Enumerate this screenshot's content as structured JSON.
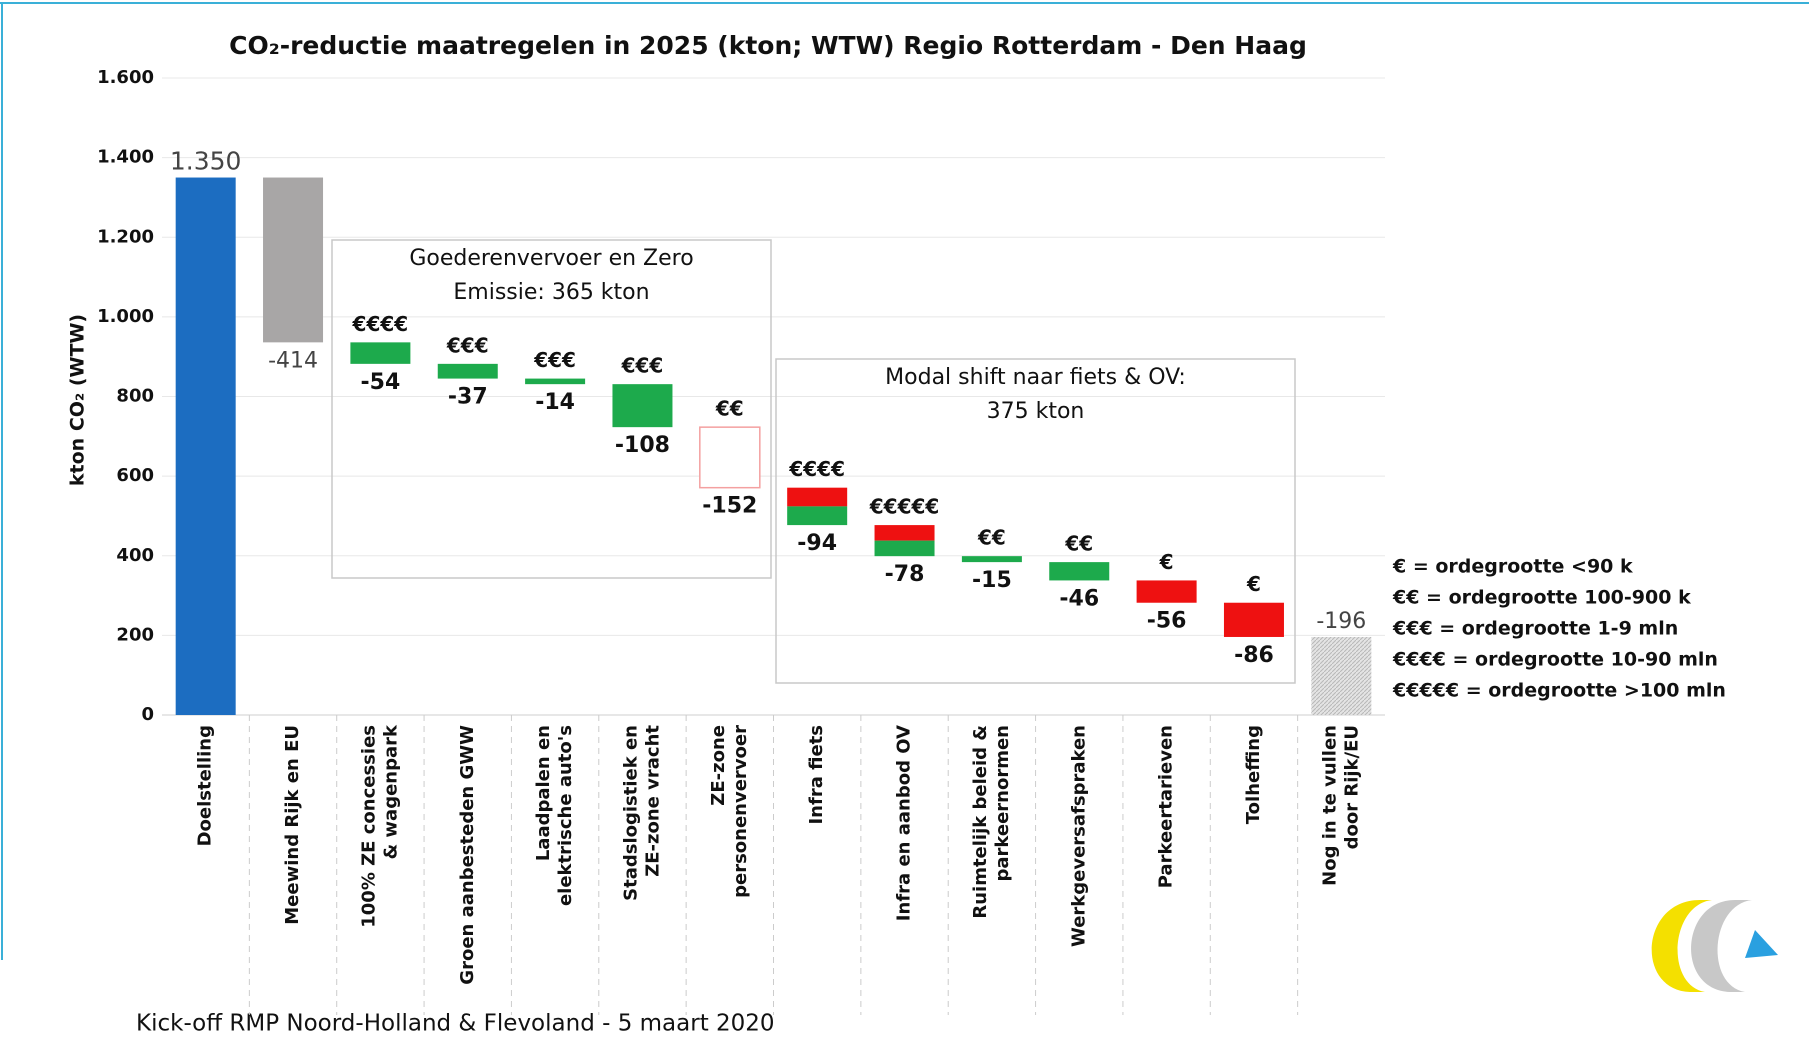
{
  "chart_data": {
    "type": "waterfall",
    "title": "CO₂-reductie maatregelen in 2025 (kton; WTW) Regio Rotterdam  -  Den Haag",
    "y_label": "kton CO₂ (WTW)",
    "categories": [
      "Doelstelling",
      "Meewind Rijk en EU",
      "100% ZE concessies & wagenpark",
      "Groen aanbesteden GWW",
      "Laadpalen en elektrische auto's",
      "Stadslogistiek en ZE-zone vracht",
      "ZE-zone personenvervoer",
      "Infra fiets",
      "Infra en aanbod OV",
      "Ruimtelijk beleid & parkeernormen",
      "Werkgeversafspraken",
      "Parkeertarieven",
      "Tolheffing",
      "Nog in te vullen door Rijk/EU"
    ],
    "values": [
      1350,
      -414,
      -54,
      -37,
      -14,
      -108,
      -152,
      -94,
      -78,
      -15,
      -46,
      -56,
      -86,
      -196
    ],
    "value_labels": [
      "1.350",
      "-414",
      "-54",
      "-37",
      "-14",
      "-108",
      "-152",
      "-94",
      "-78",
      "-15",
      "-46",
      "-56",
      "-86",
      "-196"
    ],
    "colors": [
      "#1c6dc1",
      "#a8a6a6",
      "#1daa4c",
      "#1daa4c",
      "#1daa4c",
      "#1daa4c",
      "#ffffff",
      [
        "#ee1111",
        "#1daa4c"
      ],
      [
        "#ee1111",
        "#1daa4c"
      ],
      "#1daa4c",
      "#1daa4c",
      "#ee1111",
      "#ee1111",
      "#d4d4d4"
    ],
    "cost_labels": [
      null,
      null,
      "€€€€",
      "€€€",
      "€€€",
      "€€€",
      "€€",
      "€€€€",
      "€€€€€",
      "€€",
      "€€",
      "€",
      "€",
      null
    ],
    "ylim": [
      0,
      1600
    ],
    "yticks": [
      0,
      200,
      400,
      600,
      800,
      {
        "value": 1000,
        "label": "1.000"
      },
      {
        "value": 1200,
        "label": "1.200"
      },
      {
        "value": 1400,
        "label": "1.400"
      },
      {
        "value": 1600,
        "label": "1.600"
      }
    ],
    "grid": true,
    "annotations": [
      {
        "lines": [
          "Goederenvervoer en Zero",
          "Emissie: 365 kton"
        ]
      },
      {
        "lines": [
          "Modal shift naar fiets & OV:",
          "375  kton"
        ]
      }
    ],
    "legend_lines": [
      "€ = ordegrootte <90 k",
      "€€ = ordegrootte 100-900 k",
      "€€€ = ordegrootte 1-9 mln",
      "€€€€ = ordegrootte 10-90 mln",
      "€€€€€ = ordegrootte >100 mln"
    ],
    "footer": "Kick-off RMP Noord-Holland & Flevoland - 5 maart 2020"
  }
}
